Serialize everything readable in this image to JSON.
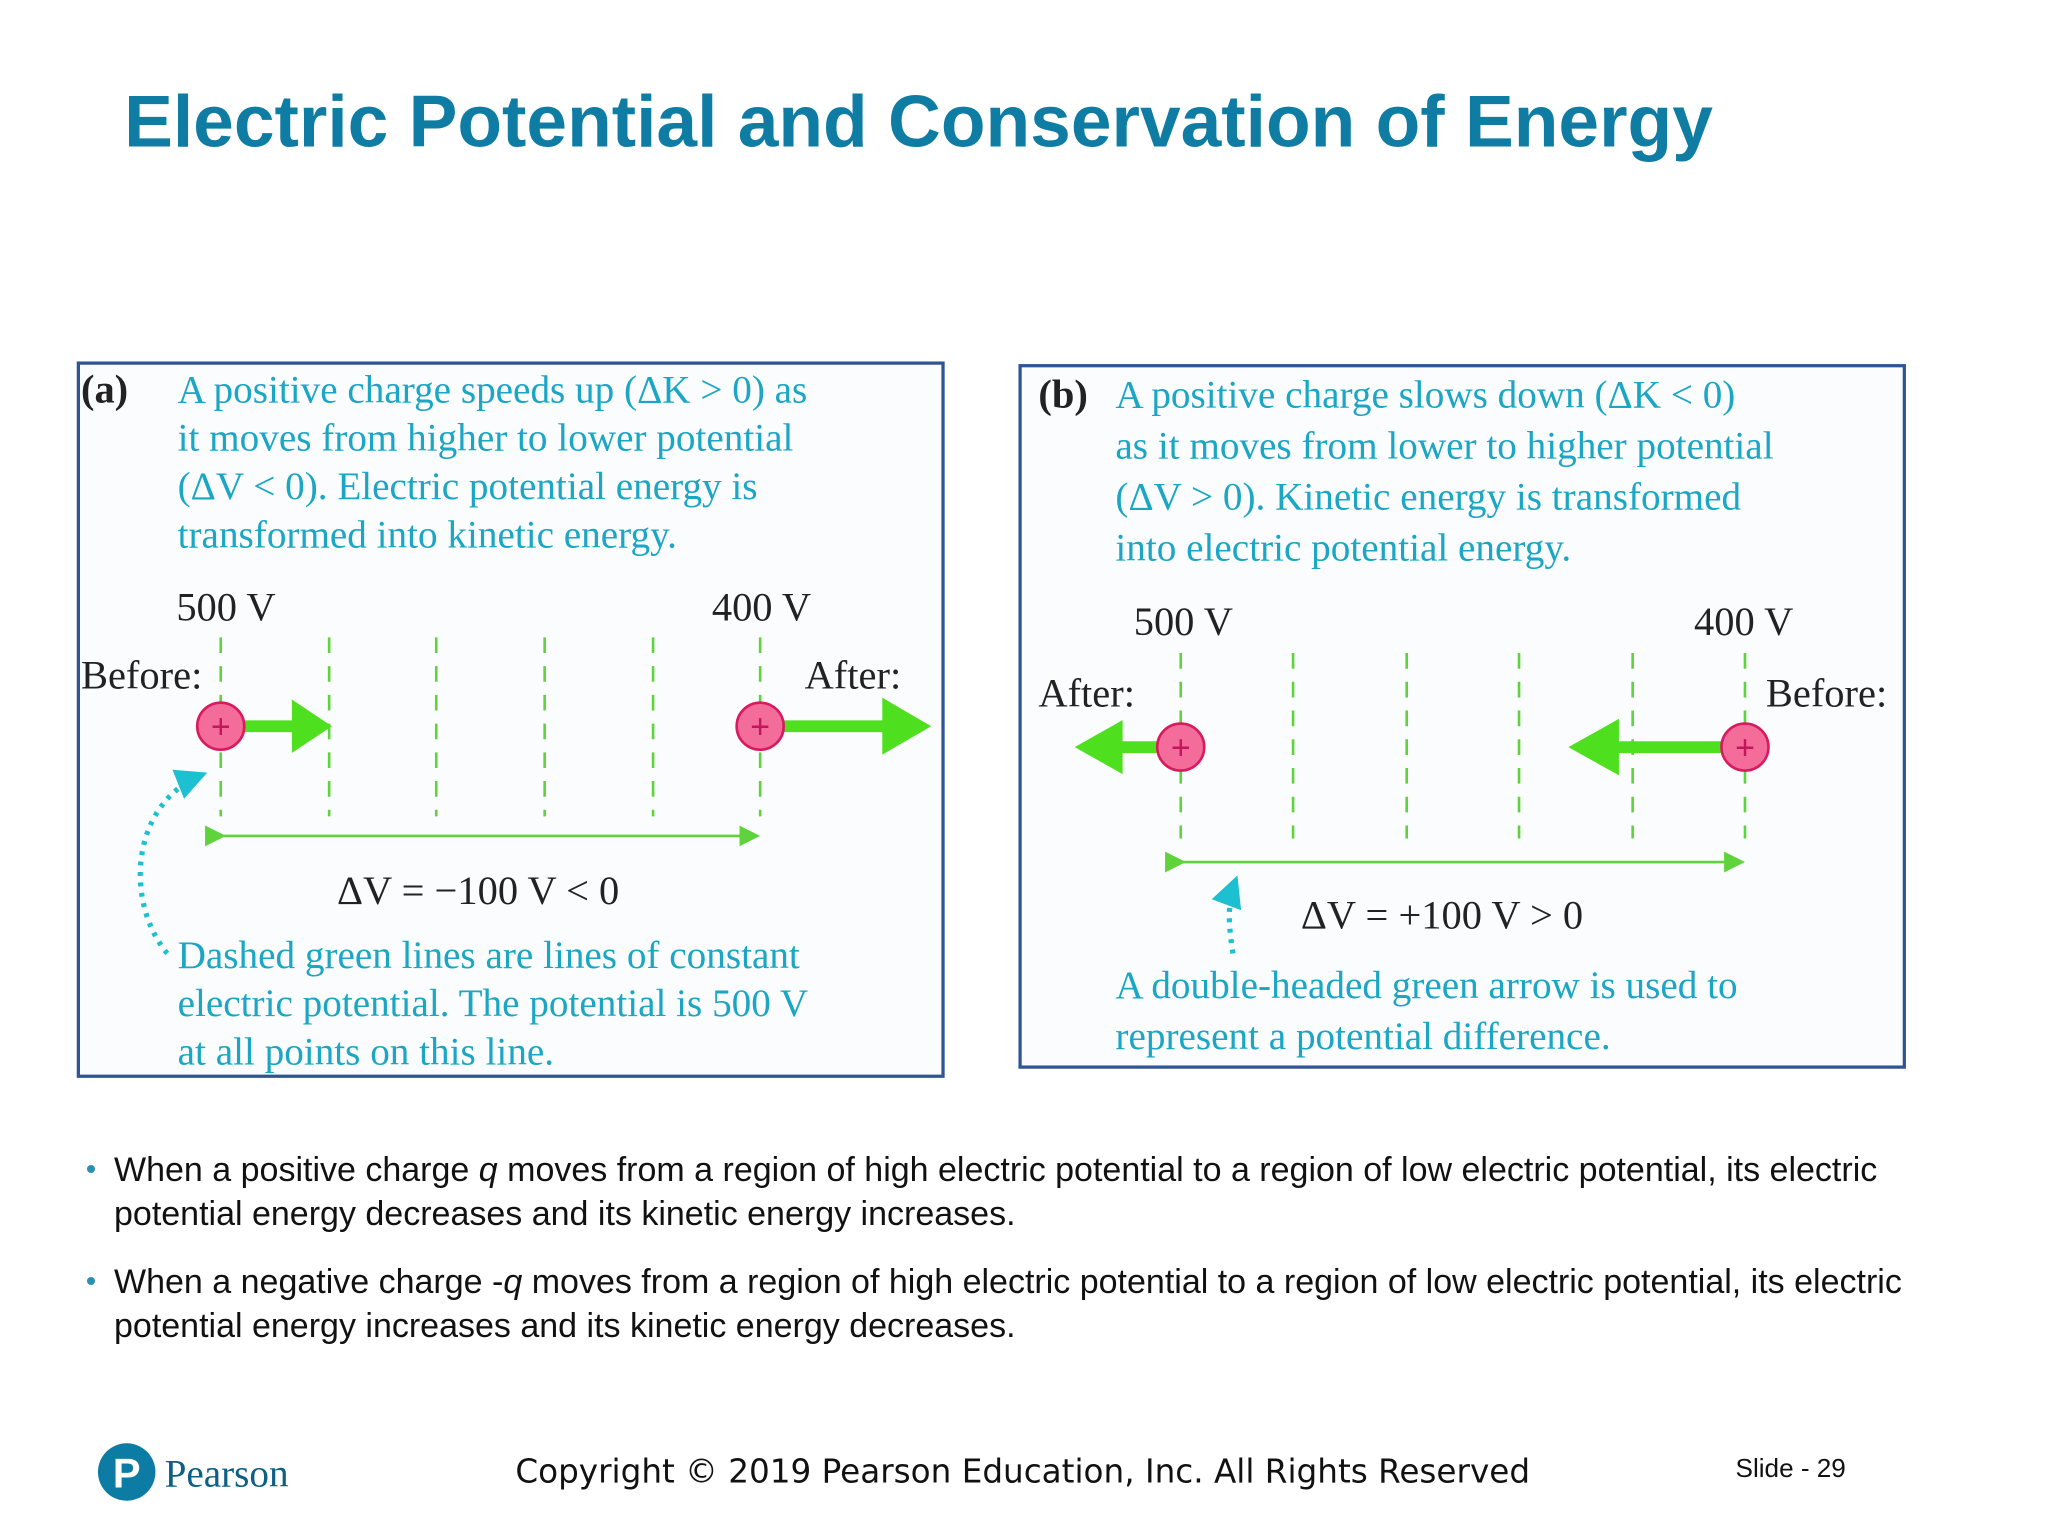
{
  "title": "Electric Potential and Conservation of Energy",
  "panel_a": {
    "label": "(a)",
    "caption": [
      "A positive charge speeds up (ΔK > 0) as",
      "it moves from higher to lower potential",
      "(ΔV < 0). Electric potential energy is",
      "transformed into kinetic energy."
    ],
    "left_potential": "500 V",
    "right_potential": "400 V",
    "left_tag": "Before:",
    "right_tag": "After:",
    "delta_v": "ΔV = −100 V < 0",
    "note": [
      "Dashed green lines are lines of constant",
      "electric potential. The potential is 500 V",
      "at all points on this line."
    ]
  },
  "panel_b": {
    "label": "(b)",
    "caption": [
      "A positive charge slows down (ΔK < 0)",
      "as it moves from lower to higher potential",
      "(ΔV > 0). Kinetic energy is transformed",
      "into electric potential energy."
    ],
    "left_potential": "500 V",
    "right_potential": "400 V",
    "left_tag": "After:",
    "right_tag": "Before:",
    "delta_v": "ΔV = +100 V > 0",
    "note": [
      "A double-headed green arrow is used to",
      "represent a potential difference."
    ]
  },
  "charge_symbol": "+",
  "bullets": [
    {
      "text_before": "When a positive charge ",
      "italic": "q",
      "text_after": " moves from a region of high electric potential to a region of low electric potential, its electric potential energy decreases and its kinetic energy increases."
    },
    {
      "text_before": "When a negative charge -",
      "italic": "q",
      "text_after": " moves from a region of high electric potential to a region of low electric potential, its electric potential energy increases and its kinetic energy decreases."
    }
  ],
  "footer": {
    "logo_letter": "P",
    "brand": "Pearson",
    "copyright": "Copyright © 2019 Pearson Education, Inc. All Rights Reserved",
    "slide": "Slide - 29"
  }
}
